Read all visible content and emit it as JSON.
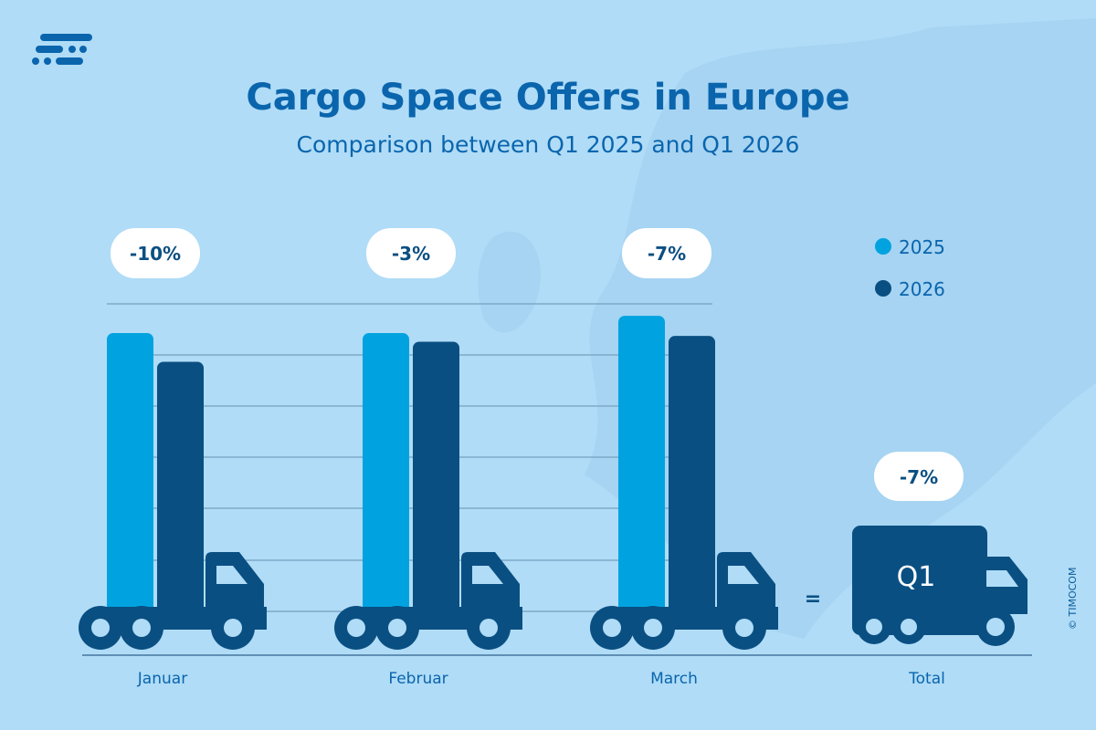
{
  "logo": {
    "name": "timocom-logo-icon"
  },
  "chart_data": {
    "type": "bar",
    "title": "Cargo Space Offers in Europe",
    "subtitle": "Comparison between Q1 2025 and Q1 2026",
    "categories": [
      "Januar",
      "Februar",
      "March"
    ],
    "series": [
      {
        "name": "2025",
        "color": "#00a3e0",
        "values": [
          100,
          100,
          106
        ]
      },
      {
        "name": "2026",
        "color": "#0a4f82",
        "values": [
          90,
          97,
          99
        ]
      }
    ],
    "changes": [
      "-10%",
      "-3%",
      "-7%"
    ],
    "total": {
      "label": "Total",
      "truck_text": "Q1",
      "change": "-7%",
      "equals": "="
    },
    "legend_placement": "top-right",
    "grid": true
  },
  "copyright": "© TIMOCOM"
}
